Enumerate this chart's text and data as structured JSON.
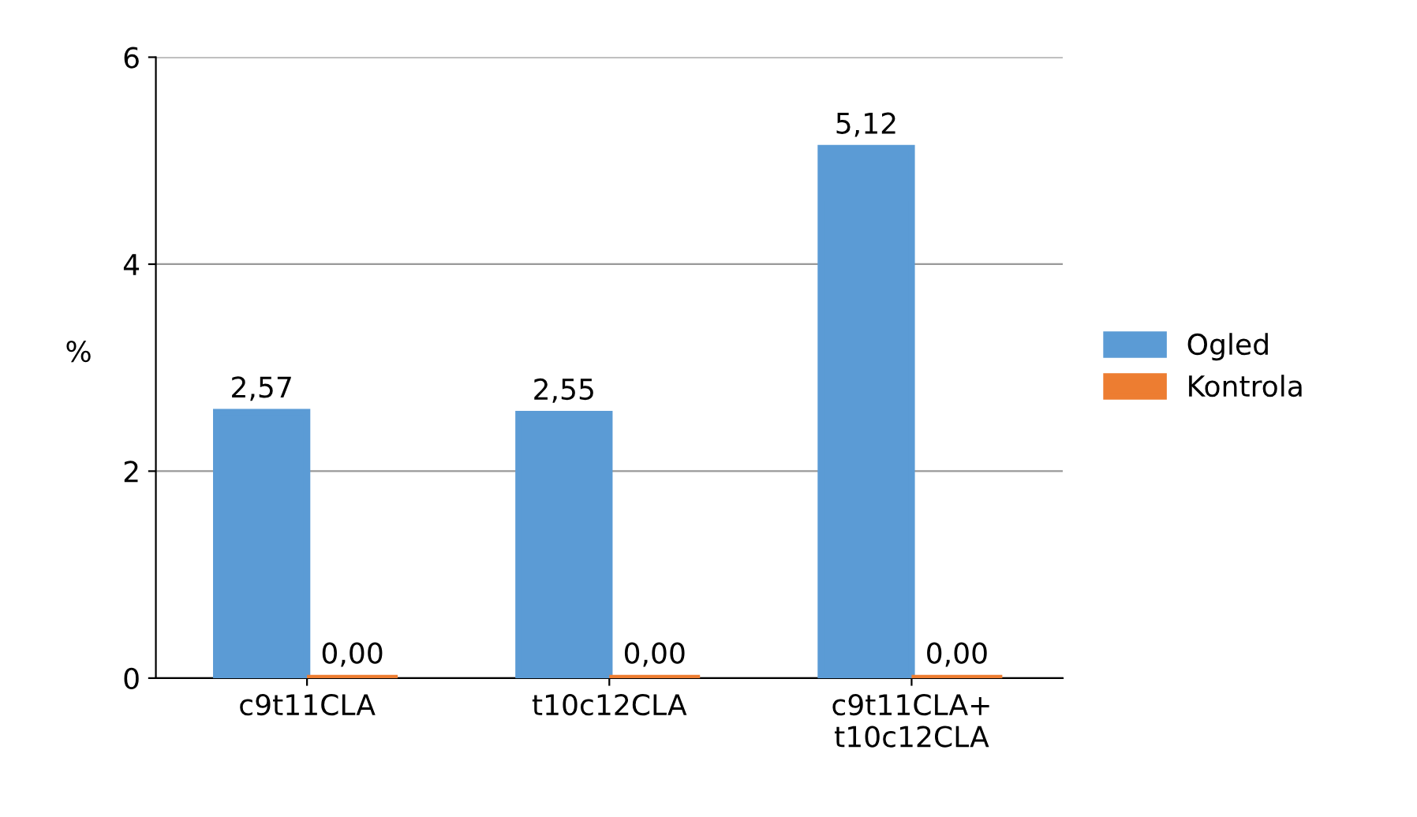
{
  "chart_data": {
    "type": "bar",
    "ylabel": "%",
    "categories": [
      "c9t11CLA",
      "t10c12CLA",
      "c9t11CLA+\nt10c12CLA"
    ],
    "series": [
      {
        "name": "Ogled",
        "color": "#5b9bd5",
        "values": [
          2.57,
          2.55,
          5.12
        ],
        "value_labels": [
          "2,57",
          "2,55",
          "5,12"
        ]
      },
      {
        "name": "Kontrola",
        "color": "#ed7d31",
        "values": [
          0,
          0,
          0
        ],
        "value_labels": [
          "0,00",
          "0,00",
          "0,00"
        ]
      }
    ],
    "ylim": [
      0,
      6
    ],
    "yticks": [
      0,
      2,
      4,
      6
    ],
    "grid": "y",
    "legend": "right"
  }
}
